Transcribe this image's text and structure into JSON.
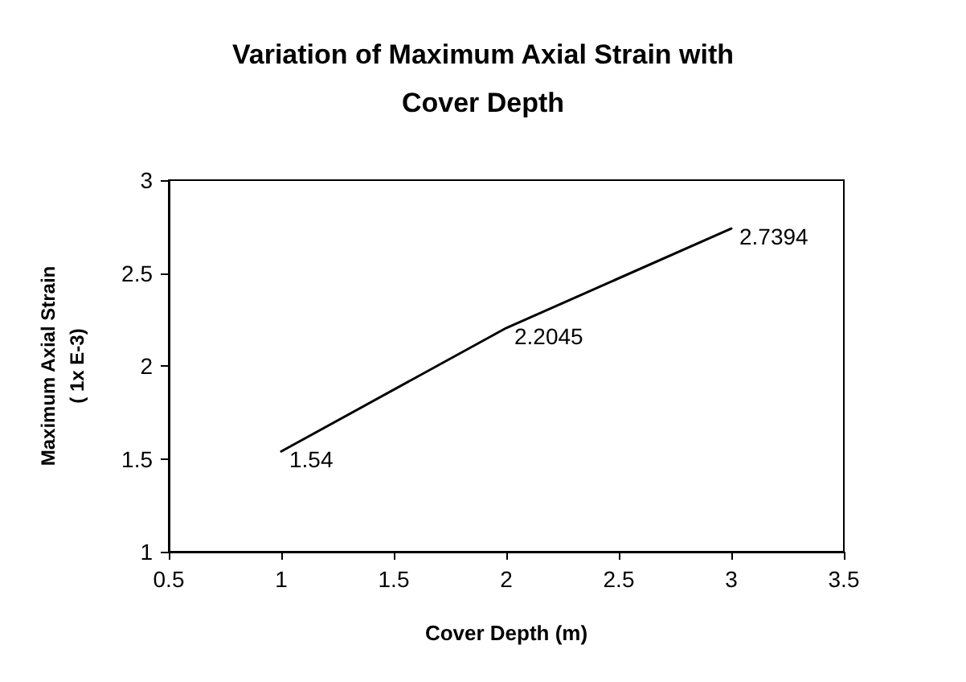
{
  "chart_data": {
    "type": "line",
    "title": "Variation of Maximum Axial Strain with\nCover Depth",
    "xlabel": "Cover Depth (m)",
    "ylabel": "Maximum Axial Strain\n( 1x E-3)",
    "x": [
      1,
      2,
      3
    ],
    "series": [
      {
        "color": "#000000",
        "values": [
          1.54,
          2.2045,
          2.7394
        ]
      }
    ],
    "xlim": [
      0.5,
      3.5
    ],
    "xticks": [
      0.5,
      1,
      1.5,
      2,
      2.5,
      3,
      3.5
    ],
    "ylim": [
      1,
      3
    ],
    "yticks": [
      1,
      1.5,
      2,
      2.5,
      3
    ],
    "data_labels": true,
    "grid": false,
    "marker": "none",
    "line_style": "solid"
  }
}
